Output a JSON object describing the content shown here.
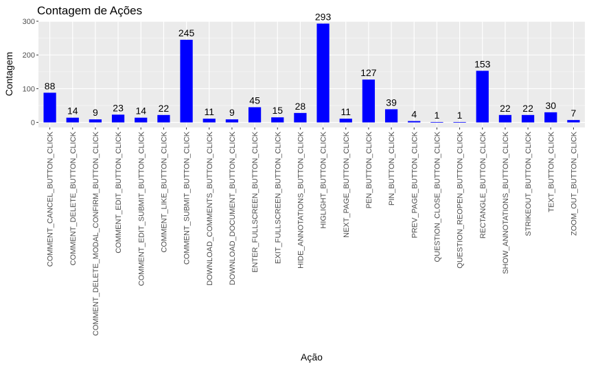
{
  "chart_data": {
    "type": "bar",
    "title": "Contagem de Ações",
    "xlabel": "Ação",
    "ylabel": "Contagem",
    "ylim": [
      -15,
      300
    ],
    "yticks": [
      0,
      100,
      200,
      300
    ],
    "grid": true,
    "bar_color": "#0000ff",
    "panel_color": "#ebebeb",
    "categories": [
      "COMMENT_CANCEL_BUTTON_CLICK",
      "COMMENT_DELETE_BUTTON_CLICK",
      "COMMENT_DELETE_MODAL_CONFIRM_BUTTON_CLICK",
      "COMMENT_EDIT_BUTTON_CLICK",
      "COMMENT_EDIT_SUBMIT_BUTTON_CLICK",
      "COMMENT_LIKE_BUTTON_CLICK",
      "COMMENT_SUBMIT_BUTTON_CLICK",
      "DOWNLOAD_COMMENTS_BUTTON_CLICK",
      "DOWNLOAD_DOCUMENT_BUTTON_CLICK",
      "ENTER_FULLSCREEN_BUTTON_CLICK",
      "EXIT_FULLSCREEN_BUTTON_CLICK",
      "HIDE_ANNOTATIONS_BUTTON_CLICK",
      "HIGLIGHT_BUTTON_CLICK",
      "NEXT_PAGE_BUTTON_CLICK",
      "PEN_BUTTON_CLICK",
      "PIN_BUTTON_CLICK",
      "PREV_PAGE_BUTTON_CLICK",
      "QUESTION_CLOSE_BUTTON_CLICK",
      "QUESTION_REOPEN_BUTTON_CLICK",
      "RECTANGLE_BUTTON_CLICK",
      "SHOW_ANNOTATIONS_BUTTON_CLICK",
      "STRIKEOUT_BUTTON_CLICK",
      "TEXT_BUTTON_CLICK",
      "ZOOM_OUT_BUTTON_CLICK"
    ],
    "values": [
      88,
      14,
      9,
      23,
      14,
      22,
      245,
      11,
      9,
      45,
      15,
      28,
      293,
      11,
      127,
      39,
      4,
      1,
      1,
      153,
      22,
      22,
      30,
      7
    ]
  }
}
